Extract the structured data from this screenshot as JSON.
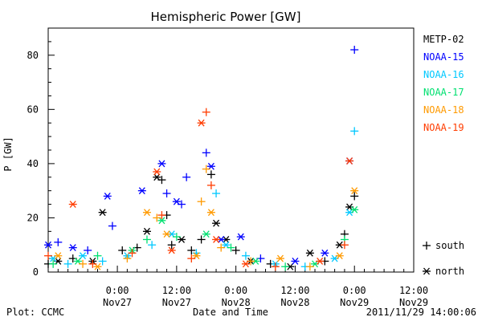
{
  "chart_data": {
    "type": "scatter",
    "title": "Hemispheric Power [GW]",
    "xlabel": "Date and Time",
    "ylabel": "P [GW]",
    "ylim": [
      0,
      90
    ],
    "yticks": [
      0,
      20,
      40,
      60,
      80
    ],
    "xlim": [
      "2011-11-26 10:00",
      "2011-11-29 12:00"
    ],
    "xticks": [
      {
        "time": "2011-11-27 00:00",
        "line1": "0:00",
        "line2": "Nov27"
      },
      {
        "time": "2011-11-27 12:00",
        "line1": "12:00",
        "line2": "Nov27"
      },
      {
        "time": "2011-11-28 00:00",
        "line1": "0:00",
        "line2": "Nov28"
      },
      {
        "time": "2011-11-28 12:00",
        "line1": "12:00",
        "line2": "Nov28"
      },
      {
        "time": "2011-11-29 00:00",
        "line1": "0:00",
        "line2": "Nov29"
      },
      {
        "time": "2011-11-29 12:00",
        "line1": "12:00",
        "line2": "Nov29"
      }
    ],
    "grid": false,
    "legend_position": "right",
    "marker_legend": [
      {
        "symbol": "+",
        "label": "south"
      },
      {
        "symbol": "*",
        "label": "north"
      }
    ],
    "series": [
      {
        "name": "METP-02",
        "color": "#000000",
        "points": [
          [
            "2011-11-26 10:00",
            3,
            "+"
          ],
          [
            "2011-11-26 12:00",
            4,
            "*"
          ],
          [
            "2011-11-26 15:00",
            5,
            "+"
          ],
          [
            "2011-11-26 19:00",
            4,
            "*"
          ],
          [
            "2011-11-26 21:00",
            22,
            "*"
          ],
          [
            "2011-11-27 01:00",
            8,
            "+"
          ],
          [
            "2011-11-27 04:00",
            9,
            "+"
          ],
          [
            "2011-11-27 06:00",
            15,
            "*"
          ],
          [
            "2011-11-27 08:00",
            35,
            "*"
          ],
          [
            "2011-11-27 09:00",
            34,
            "+"
          ],
          [
            "2011-11-27 10:00",
            21,
            "+"
          ],
          [
            "2011-11-27 11:00",
            10,
            "+"
          ],
          [
            "2011-11-27 13:00",
            12,
            "*"
          ],
          [
            "2011-11-27 15:00",
            8,
            "+"
          ],
          [
            "2011-11-27 17:00",
            12,
            "+"
          ],
          [
            "2011-11-27 19:00",
            36,
            "+"
          ],
          [
            "2011-11-27 20:00",
            18,
            "*"
          ],
          [
            "2011-11-27 22:00",
            12,
            "*"
          ],
          [
            "2011-11-28 00:00",
            8,
            "+"
          ],
          [
            "2011-11-28 03:00",
            4,
            "*"
          ],
          [
            "2011-11-28 07:00",
            3,
            "+"
          ],
          [
            "2011-11-28 11:00",
            2,
            "*"
          ],
          [
            "2011-11-28 15:00",
            7,
            "*"
          ],
          [
            "2011-11-28 18:00",
            4,
            "+"
          ],
          [
            "2011-11-28 21:00",
            10,
            "*"
          ],
          [
            "2011-11-28 22:00",
            14,
            "+"
          ],
          [
            "2011-11-28 23:00",
            24,
            "*"
          ],
          [
            "2011-11-29 00:00",
            28,
            "+"
          ]
        ]
      },
      {
        "name": "NOAA-15",
        "color": "#0000ff",
        "points": [
          [
            "2011-11-26 10:00",
            10,
            "*"
          ],
          [
            "2011-11-26 12:00",
            11,
            "+"
          ],
          [
            "2011-11-26 15:00",
            9,
            "*"
          ],
          [
            "2011-11-26 18:00",
            8,
            "+"
          ],
          [
            "2011-11-26 22:00",
            28,
            "*"
          ],
          [
            "2011-11-26 23:00",
            17,
            "+"
          ],
          [
            "2011-11-27 05:00",
            30,
            "*"
          ],
          [
            "2011-11-27 09:00",
            40,
            "*"
          ],
          [
            "2011-11-27 10:00",
            29,
            "+"
          ],
          [
            "2011-11-27 12:00",
            26,
            "*"
          ],
          [
            "2011-11-27 13:00",
            25,
            "+"
          ],
          [
            "2011-11-27 14:00",
            35,
            "+"
          ],
          [
            "2011-11-27 18:00",
            44,
            "+"
          ],
          [
            "2011-11-27 19:00",
            39,
            "*"
          ],
          [
            "2011-11-27 21:00",
            12,
            "*"
          ],
          [
            "2011-11-28 01:00",
            13,
            "*"
          ],
          [
            "2011-11-28 05:00",
            5,
            "+"
          ],
          [
            "2011-11-28 12:00",
            4,
            "*"
          ],
          [
            "2011-11-28 18:00",
            7,
            "*"
          ],
          [
            "2011-11-28 23:00",
            41,
            "*"
          ],
          [
            "2011-11-29 00:00",
            82,
            "+"
          ]
        ]
      },
      {
        "name": "NOAA-16",
        "color": "#00c8ff",
        "points": [
          [
            "2011-11-26 11:00",
            5,
            "*"
          ],
          [
            "2011-11-26 14:00",
            3,
            "+"
          ],
          [
            "2011-11-26 17:00",
            6,
            "*"
          ],
          [
            "2011-11-26 21:00",
            4,
            "+"
          ],
          [
            "2011-11-27 02:00",
            6,
            "*"
          ],
          [
            "2011-11-27 07:00",
            10,
            "+"
          ],
          [
            "2011-11-27 11:00",
            14,
            "*"
          ],
          [
            "2011-11-27 16:00",
            7,
            "+"
          ],
          [
            "2011-11-27 20:00",
            29,
            "+"
          ],
          [
            "2011-11-27 22:00",
            10,
            "*"
          ],
          [
            "2011-11-28 02:00",
            6,
            "+"
          ],
          [
            "2011-11-28 08:00",
            3,
            "*"
          ],
          [
            "2011-11-28 14:00",
            2,
            "+"
          ],
          [
            "2011-11-28 20:00",
            5,
            "*"
          ],
          [
            "2011-11-28 23:00",
            22,
            "*"
          ],
          [
            "2011-11-29 00:00",
            52,
            "+"
          ]
        ]
      },
      {
        "name": "NOAA-17",
        "color": "#00e070",
        "points": [
          [
            "2011-11-26 11:00",
            3,
            "+"
          ],
          [
            "2011-11-26 16:00",
            4,
            "*"
          ],
          [
            "2011-11-26 20:00",
            6,
            "+"
          ],
          [
            "2011-11-27 03:00",
            8,
            "*"
          ],
          [
            "2011-11-27 06:00",
            12,
            "+"
          ],
          [
            "2011-11-27 09:00",
            19,
            "*"
          ],
          [
            "2011-11-27 12:00",
            13,
            "+"
          ],
          [
            "2011-11-27 18:00",
            14,
            "*"
          ],
          [
            "2011-11-27 23:00",
            9,
            "+"
          ],
          [
            "2011-11-28 04:00",
            4,
            "*"
          ],
          [
            "2011-11-28 10:00",
            2,
            "+"
          ],
          [
            "2011-11-28 16:00",
            3,
            "*"
          ],
          [
            "2011-11-28 22:00",
            12,
            "+"
          ],
          [
            "2011-11-29 00:00",
            23,
            "*"
          ]
        ]
      },
      {
        "name": "NOAA-18",
        "color": "#ff9a00",
        "points": [
          [
            "2011-11-26 12:00",
            6,
            "*"
          ],
          [
            "2011-11-26 17:00",
            3,
            "+"
          ],
          [
            "2011-11-26 20:00",
            2,
            "*"
          ],
          [
            "2011-11-27 02:00",
            5,
            "+"
          ],
          [
            "2011-11-27 06:00",
            22,
            "*"
          ],
          [
            "2011-11-27 08:00",
            20,
            "+"
          ],
          [
            "2011-11-27 10:00",
            14,
            "*"
          ],
          [
            "2011-11-27 16:00",
            6,
            "*"
          ],
          [
            "2011-11-27 17:00",
            26,
            "+"
          ],
          [
            "2011-11-27 18:00",
            38,
            "+"
          ],
          [
            "2011-11-27 19:00",
            22,
            "*"
          ],
          [
            "2011-11-27 21:00",
            9,
            "+"
          ],
          [
            "2011-11-28 03:00",
            4,
            "+"
          ],
          [
            "2011-11-28 09:00",
            5,
            "*"
          ],
          [
            "2011-11-28 15:00",
            2,
            "+"
          ],
          [
            "2011-11-28 21:00",
            6,
            "*"
          ],
          [
            "2011-11-29 00:00",
            30,
            "*"
          ]
        ]
      },
      {
        "name": "NOAA-19",
        "color": "#ff3c00",
        "points": [
          [
            "2011-11-26 10:00",
            6,
            "+"
          ],
          [
            "2011-11-26 15:00",
            25,
            "*"
          ],
          [
            "2011-11-26 19:00",
            3,
            "+"
          ],
          [
            "2011-11-27 03:00",
            7,
            "+"
          ],
          [
            "2011-11-27 08:00",
            37,
            "*"
          ],
          [
            "2011-11-27 09:00",
            21,
            "+"
          ],
          [
            "2011-11-27 11:00",
            8,
            "*"
          ],
          [
            "2011-11-27 15:00",
            5,
            "+"
          ],
          [
            "2011-11-27 17:00",
            55,
            "*"
          ],
          [
            "2011-11-27 18:00",
            59,
            "+"
          ],
          [
            "2011-11-27 19:00",
            32,
            "+"
          ],
          [
            "2011-11-27 20:00",
            12,
            "*"
          ],
          [
            "2011-11-28 02:00",
            3,
            "*"
          ],
          [
            "2011-11-28 08:00",
            2,
            "+"
          ],
          [
            "2011-11-28 17:00",
            4,
            "*"
          ],
          [
            "2011-11-28 22:00",
            10,
            "+"
          ],
          [
            "2011-11-28 23:00",
            41,
            "*"
          ]
        ]
      }
    ]
  },
  "footer": {
    "left": "Plot: CCMC",
    "right": "2011/11/29 14:00:06"
  }
}
